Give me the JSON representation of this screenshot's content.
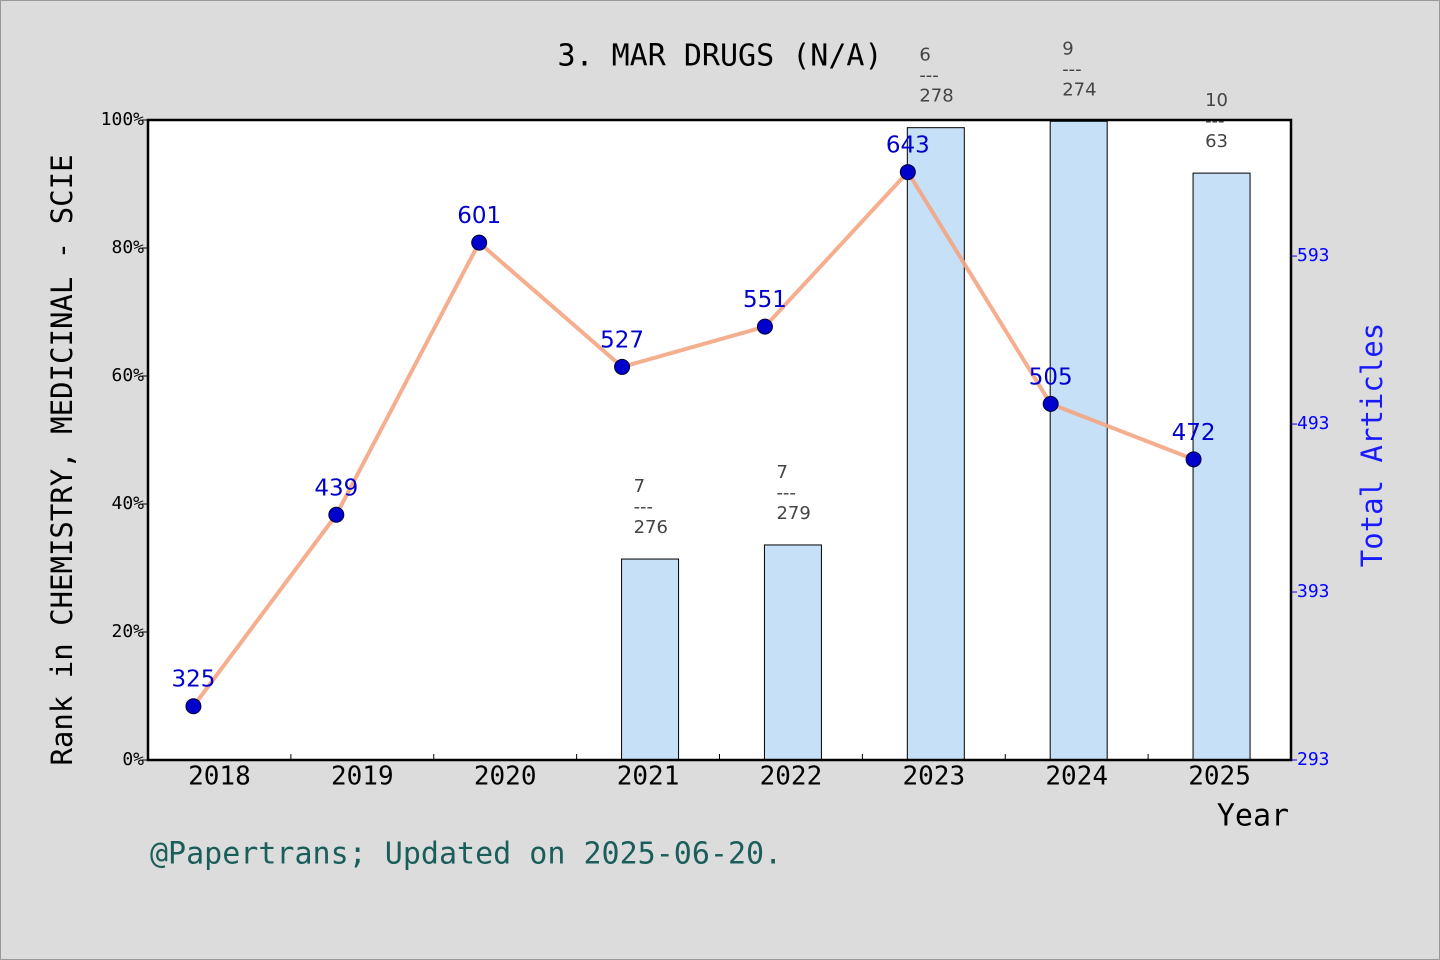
{
  "chart_data": {
    "type": "bar_line",
    "title": "3. MAR DRUGS (N/A)",
    "x_label": "Year",
    "y_label": "Rank in CHEMISTRY, MEDICINAL - SCIE",
    "y2_label": "Total Articles",
    "footer": "@Papertrans; Updated on 2025-06-20.",
    "categories": [
      "2018",
      "2019",
      "2020",
      "2021",
      "2022",
      "2023",
      "2024",
      "2025"
    ],
    "series": [
      {
        "name": "Rank",
        "kind": "bar",
        "color": "#c6e0f7",
        "values": [
          null,
          null,
          null,
          31.4,
          33.6,
          98.8,
          99.8,
          91.7
        ],
        "value_labels": [
          null,
          null,
          null,
          "7\n---\n276",
          "7\n---\n279",
          "6\n---\n278",
          "9\n---\n274",
          "10\n---\n63"
        ]
      },
      {
        "name": "Total Articles",
        "kind": "line",
        "axis": "y2",
        "color": "#f4a582",
        "marker_color": "#0000cc",
        "values": [
          325,
          439,
          601,
          527,
          551,
          643,
          505,
          472
        ]
      }
    ],
    "ylim": [
      0,
      100
    ],
    "yticks": [
      {
        "value": 0,
        "label": "0%"
      },
      {
        "value": 20,
        "label": "20%"
      },
      {
        "value": 40,
        "label": "40%"
      },
      {
        "value": 60,
        "label": "60%"
      },
      {
        "value": 80,
        "label": "80%"
      },
      {
        "value": 100,
        "label": "100%"
      }
    ],
    "y2lim": [
      293,
      674
    ],
    "y2ticks": [
      293,
      393,
      493,
      593
    ]
  }
}
